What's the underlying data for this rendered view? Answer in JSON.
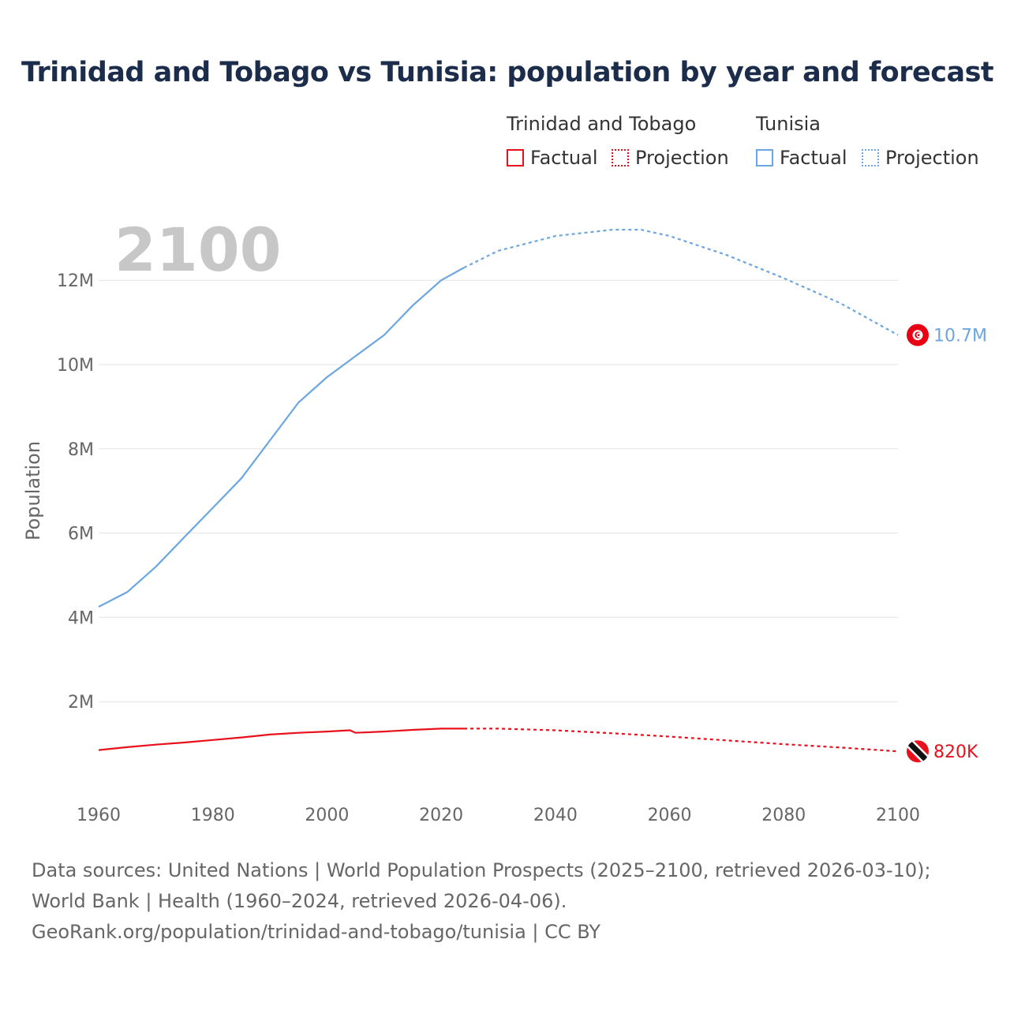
{
  "chart_data": {
    "type": "line",
    "title": "Trinidad and Tobago vs Tunisia: population by year and forecast",
    "ylabel": "Population",
    "xlabel": "",
    "year_label": "2100",
    "xlim": [
      1960,
      2100
    ],
    "ylim": [
      0,
      13500000
    ],
    "x_ticks": [
      1960,
      1980,
      2000,
      2020,
      2040,
      2060,
      2080,
      2100
    ],
    "x_tick_labels": [
      "1960",
      "1980",
      "2000",
      "2020",
      "2040",
      "2060",
      "2080",
      "2100"
    ],
    "y_ticks": [
      2000000,
      4000000,
      6000000,
      8000000,
      10000000,
      12000000
    ],
    "y_tick_labels": [
      "2M",
      "4M",
      "6M",
      "8M",
      "10M",
      "12M"
    ],
    "legend_position": "top-right",
    "series": [
      {
        "name": "Trinidad and Tobago",
        "color": "#e8111b",
        "end_label": "820K",
        "flag_icon": "trinidad-and-tobago-flag-icon",
        "factual": {
          "label": "Factual",
          "x": [
            1960,
            1965,
            1970,
            1975,
            1980,
            1985,
            1990,
            1995,
            2000,
            2004,
            2005,
            2010,
            2015,
            2020,
            2024
          ],
          "y": [
            850000,
            920000,
            980000,
            1030000,
            1090000,
            1150000,
            1220000,
            1260000,
            1290000,
            1320000,
            1260000,
            1290000,
            1330000,
            1360000,
            1360000
          ]
        },
        "projection": {
          "label": "Projection",
          "x": [
            2024,
            2030,
            2040,
            2050,
            2060,
            2070,
            2080,
            2090,
            2100
          ],
          "y": [
            1360000,
            1360000,
            1320000,
            1250000,
            1170000,
            1080000,
            990000,
            910000,
            820000
          ]
        }
      },
      {
        "name": "Tunisia",
        "color": "#6ca6e0",
        "end_label": "10.7M",
        "flag_icon": "tunisia-flag-icon",
        "factual": {
          "label": "Factual",
          "x": [
            1960,
            1965,
            1970,
            1975,
            1980,
            1985,
            1990,
            1995,
            2000,
            2005,
            2010,
            2015,
            2020,
            2024
          ],
          "y": [
            4250000,
            4600000,
            5200000,
            5900000,
            6600000,
            7300000,
            8200000,
            9100000,
            9700000,
            10200000,
            10700000,
            11400000,
            12000000,
            12300000
          ]
        },
        "projection": {
          "label": "Projection",
          "x": [
            2024,
            2030,
            2040,
            2050,
            2055,
            2060,
            2070,
            2080,
            2090,
            2100
          ],
          "y": [
            12300000,
            12700000,
            13050000,
            13200000,
            13200000,
            13050000,
            12600000,
            12050000,
            11450000,
            10700000
          ]
        }
      }
    ]
  },
  "legend": {
    "groups": [
      {
        "title": "Trinidad and Tobago",
        "factual_label": "Factual",
        "projection_label": "Projection",
        "color": "#e8111b"
      },
      {
        "title": "Tunisia",
        "factual_label": "Factual",
        "projection_label": "Projection",
        "color": "#6ca6e0"
      }
    ]
  },
  "footer": {
    "sources": "Data sources: United Nations | World Population Prospects (2025–2100, retrieved 2026-03-10); World Bank | Health (1960–2024, retrieved 2026-04-06).",
    "link": "GeoRank.org/population/trinidad-and-tobago/tunisia | CC BY"
  }
}
